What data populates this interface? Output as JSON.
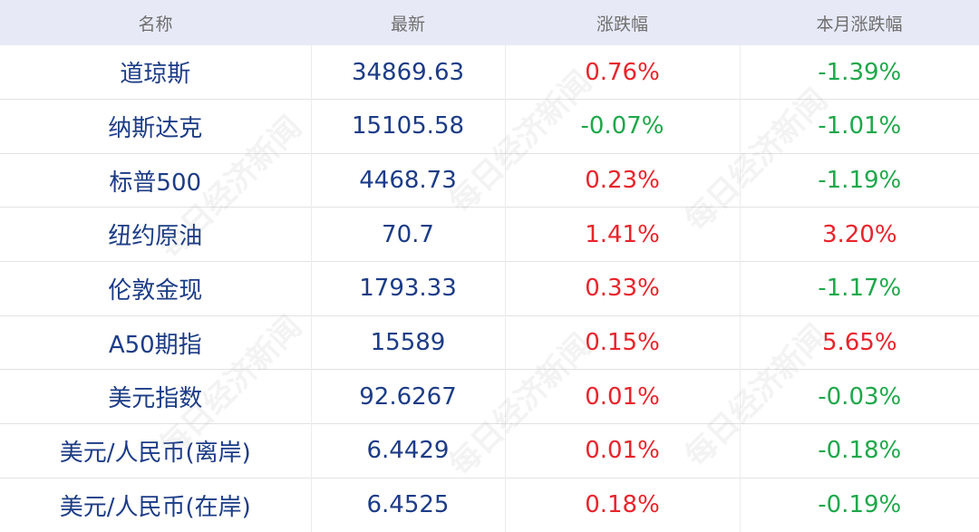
{
  "header": {
    "name": "名称",
    "latest": "最新",
    "change": "涨跌幅",
    "month_change": "本月涨跌幅"
  },
  "rows": [
    {
      "name": "道琼斯",
      "latest": "34869.63",
      "change": "0.76%",
      "month_change": "-1.39%"
    },
    {
      "name": "纳斯达克",
      "latest": "15105.58",
      "change": "-0.07%",
      "month_change": "-1.01%"
    },
    {
      "name": "标普500",
      "latest": "4468.73",
      "change": "0.23%",
      "month_change": "-1.19%"
    },
    {
      "name": "纽约原油",
      "latest": "70.7",
      "change": "1.41%",
      "month_change": "3.20%"
    },
    {
      "name": "伦敦金现",
      "latest": "1793.33",
      "change": "0.33%",
      "month_change": "-1.17%"
    },
    {
      "name": "A50期指",
      "latest": "15589",
      "change": "0.15%",
      "month_change": "5.65%"
    },
    {
      "name": "美元指数",
      "latest": "92.6267",
      "change": "0.01%",
      "month_change": "-0.03%"
    },
    {
      "name": "美元/人民币(离岸)",
      "latest": "6.4429",
      "change": "0.01%",
      "month_change": "-0.18%"
    },
    {
      "name": "美元/人民币(在岸)",
      "latest": "6.4525",
      "change": "0.18%",
      "month_change": "-0.19%"
    }
  ],
  "colors": {
    "up": "#e8242c",
    "down": "#1ea84a",
    "name": "#1c3c86",
    "header_bg": "#e7eaf6"
  },
  "watermark": "每日经济新闻"
}
